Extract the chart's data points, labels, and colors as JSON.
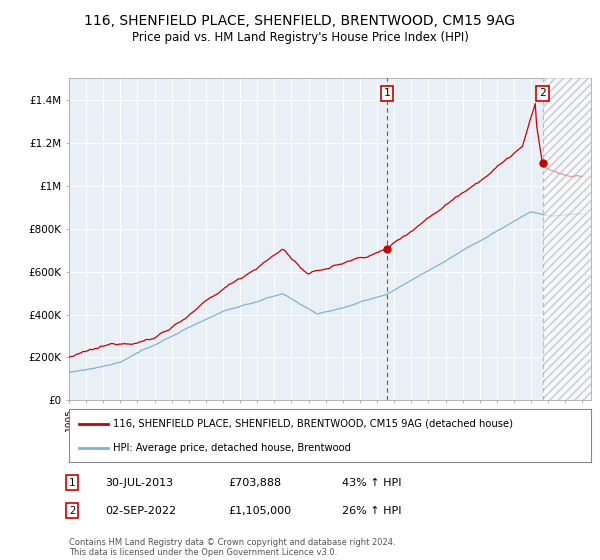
{
  "title": "116, SHENFIELD PLACE, SHENFIELD, BRENTWOOD, CM15 9AG",
  "subtitle": "Price paid vs. HM Land Registry's House Price Index (HPI)",
  "legend_line1": "116, SHENFIELD PLACE, SHENFIELD, BRENTWOOD, CM15 9AG (detached house)",
  "legend_line2": "HPI: Average price, detached house, Brentwood",
  "annotation1_date": "30-JUL-2013",
  "annotation1_price": "£703,888",
  "annotation1_hpi": "43% ↑ HPI",
  "annotation2_date": "02-SEP-2022",
  "annotation2_price": "£1,105,000",
  "annotation2_hpi": "26% ↑ HPI",
  "footer": "Contains HM Land Registry data © Crown copyright and database right 2024.\nThis data is licensed under the Open Government Licence v3.0.",
  "red_color": "#cc0000",
  "blue_color": "#7fb3d3",
  "plot_bg_color": "#e8f0f5",
  "ylim": [
    0,
    1500000
  ],
  "yticks": [
    0,
    200000,
    400000,
    600000,
    800000,
    1000000,
    1200000,
    1400000
  ],
  "ytick_labels": [
    "£0",
    "£200K",
    "£400K",
    "£600K",
    "£800K",
    "£1M",
    "£1.2M",
    "£1.4M"
  ],
  "marker1_date_num": 2013.58,
  "marker1_price": 703888,
  "marker2_date_num": 2022.67,
  "marker2_price": 1105000,
  "vline1_date_num": 2013.58,
  "vline2_date_num": 2022.67,
  "xmin": 1995.0,
  "xmax": 2025.5
}
